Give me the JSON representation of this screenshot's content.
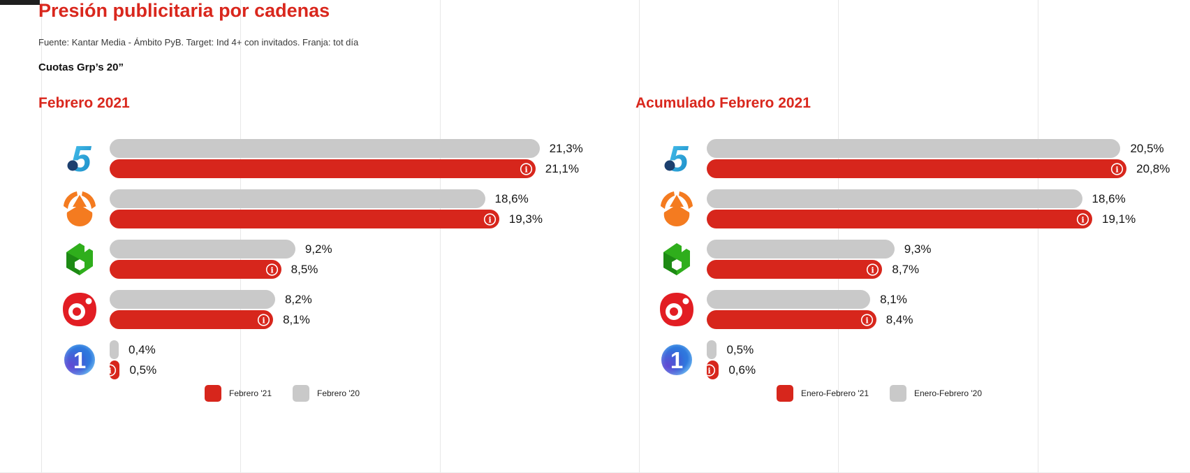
{
  "header": {
    "title": "Presión publicitaria por cadenas",
    "source": "Fuente: Kantar Media - Ámbito PyB. Target: Ind 4+ con invitados. Franja: tot día",
    "subtitle": "Cuotas Grp’s 20”"
  },
  "colors": {
    "accent_red": "#d9271d",
    "bar_current_red": "#d7261c",
    "bar_previous_gray": "#c9c9c9"
  },
  "channels": [
    {
      "name": "Telecinco",
      "logo": "telecinco-logo"
    },
    {
      "name": "Antena 3",
      "logo": "antena3-logo"
    },
    {
      "name": "laSexta",
      "logo": "lasexta-logo"
    },
    {
      "name": "Cuatro",
      "logo": "cuatro-logo"
    },
    {
      "name": "La 1",
      "logo": "la1-logo"
    }
  ],
  "chart_data": [
    {
      "type": "bar",
      "orientation": "horizontal",
      "title": "Febrero 2021",
      "value_unit": "%",
      "grid": "vertical-light",
      "legend_position": "bottom-center",
      "categories": [
        "Telecinco",
        "Antena 3",
        "laSexta",
        "Cuatro",
        "La 1"
      ],
      "series": [
        {
          "name": "Febrero '21",
          "color": "#d7261c",
          "values": [
            21.1,
            19.3,
            8.5,
            8.1,
            0.5
          ],
          "labels": [
            "21,1%",
            "19,3%",
            "8,5%",
            "8,1%",
            "0,5%"
          ]
        },
        {
          "name": "Febrero '20",
          "color": "#c9c9c9",
          "values": [
            21.3,
            18.6,
            9.2,
            8.2,
            0.4
          ],
          "labels": [
            "21,3%",
            "18,6%",
            "9,2%",
            "8,2%",
            "0,4%"
          ]
        }
      ],
      "legend": [
        "Febrero '21",
        "Febrero '20"
      ]
    },
    {
      "type": "bar",
      "orientation": "horizontal",
      "title": "Acumulado Febrero 2021",
      "value_unit": "%",
      "grid": "vertical-light",
      "legend_position": "bottom-center",
      "categories": [
        "Telecinco",
        "Antena 3",
        "laSexta",
        "Cuatro",
        "La 1"
      ],
      "series": [
        {
          "name": "Enero-Febrero '21",
          "color": "#d7261c",
          "values": [
            20.8,
            19.1,
            8.7,
            8.4,
            0.6
          ],
          "labels": [
            "20,8%",
            "19,1%",
            "8,7%",
            "8,4%",
            "0,6%"
          ]
        },
        {
          "name": "Enero-Febrero '20",
          "color": "#c9c9c9",
          "values": [
            20.5,
            18.6,
            9.3,
            8.1,
            0.5
          ],
          "labels": [
            "20,5%",
            "18,6%",
            "9,3%",
            "8,1%",
            "0,5%"
          ]
        }
      ],
      "legend": [
        "Enero-Febrero '21",
        "Enero-Febrero '20"
      ]
    }
  ]
}
